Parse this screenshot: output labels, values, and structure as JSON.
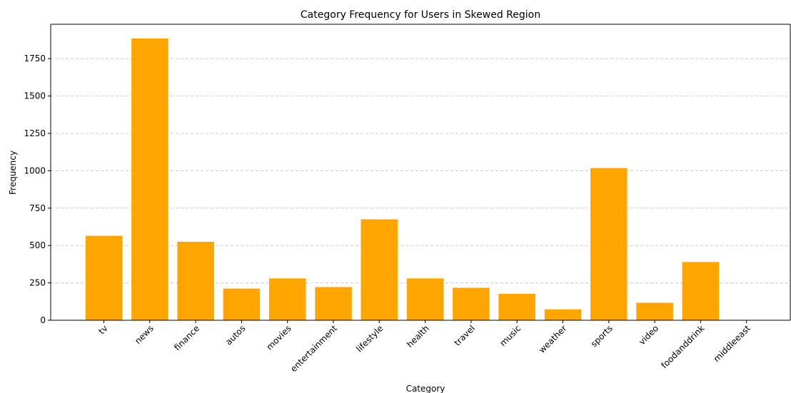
{
  "chart_data": {
    "type": "bar",
    "title": "Category Frequency for Users in Skewed Region",
    "xlabel": "Category",
    "ylabel": "Frequency",
    "categories": [
      "tv",
      "news",
      "finance",
      "autos",
      "movies",
      "entertainment",
      "lifestyle",
      "health",
      "travel",
      "music",
      "weather",
      "sports",
      "video",
      "foodanddrink",
      "middleeast"
    ],
    "values": [
      565,
      1885,
      525,
      212,
      280,
      222,
      675,
      280,
      217,
      177,
      73,
      1018,
      117,
      390,
      2
    ],
    "ylim": [
      0,
      1980
    ],
    "yticks": [
      0,
      250,
      500,
      750,
      1000,
      1250,
      1500,
      1750
    ],
    "grid": "y-dashed",
    "bar_color": "#FFA500",
    "grid_color": "#cccccc"
  }
}
